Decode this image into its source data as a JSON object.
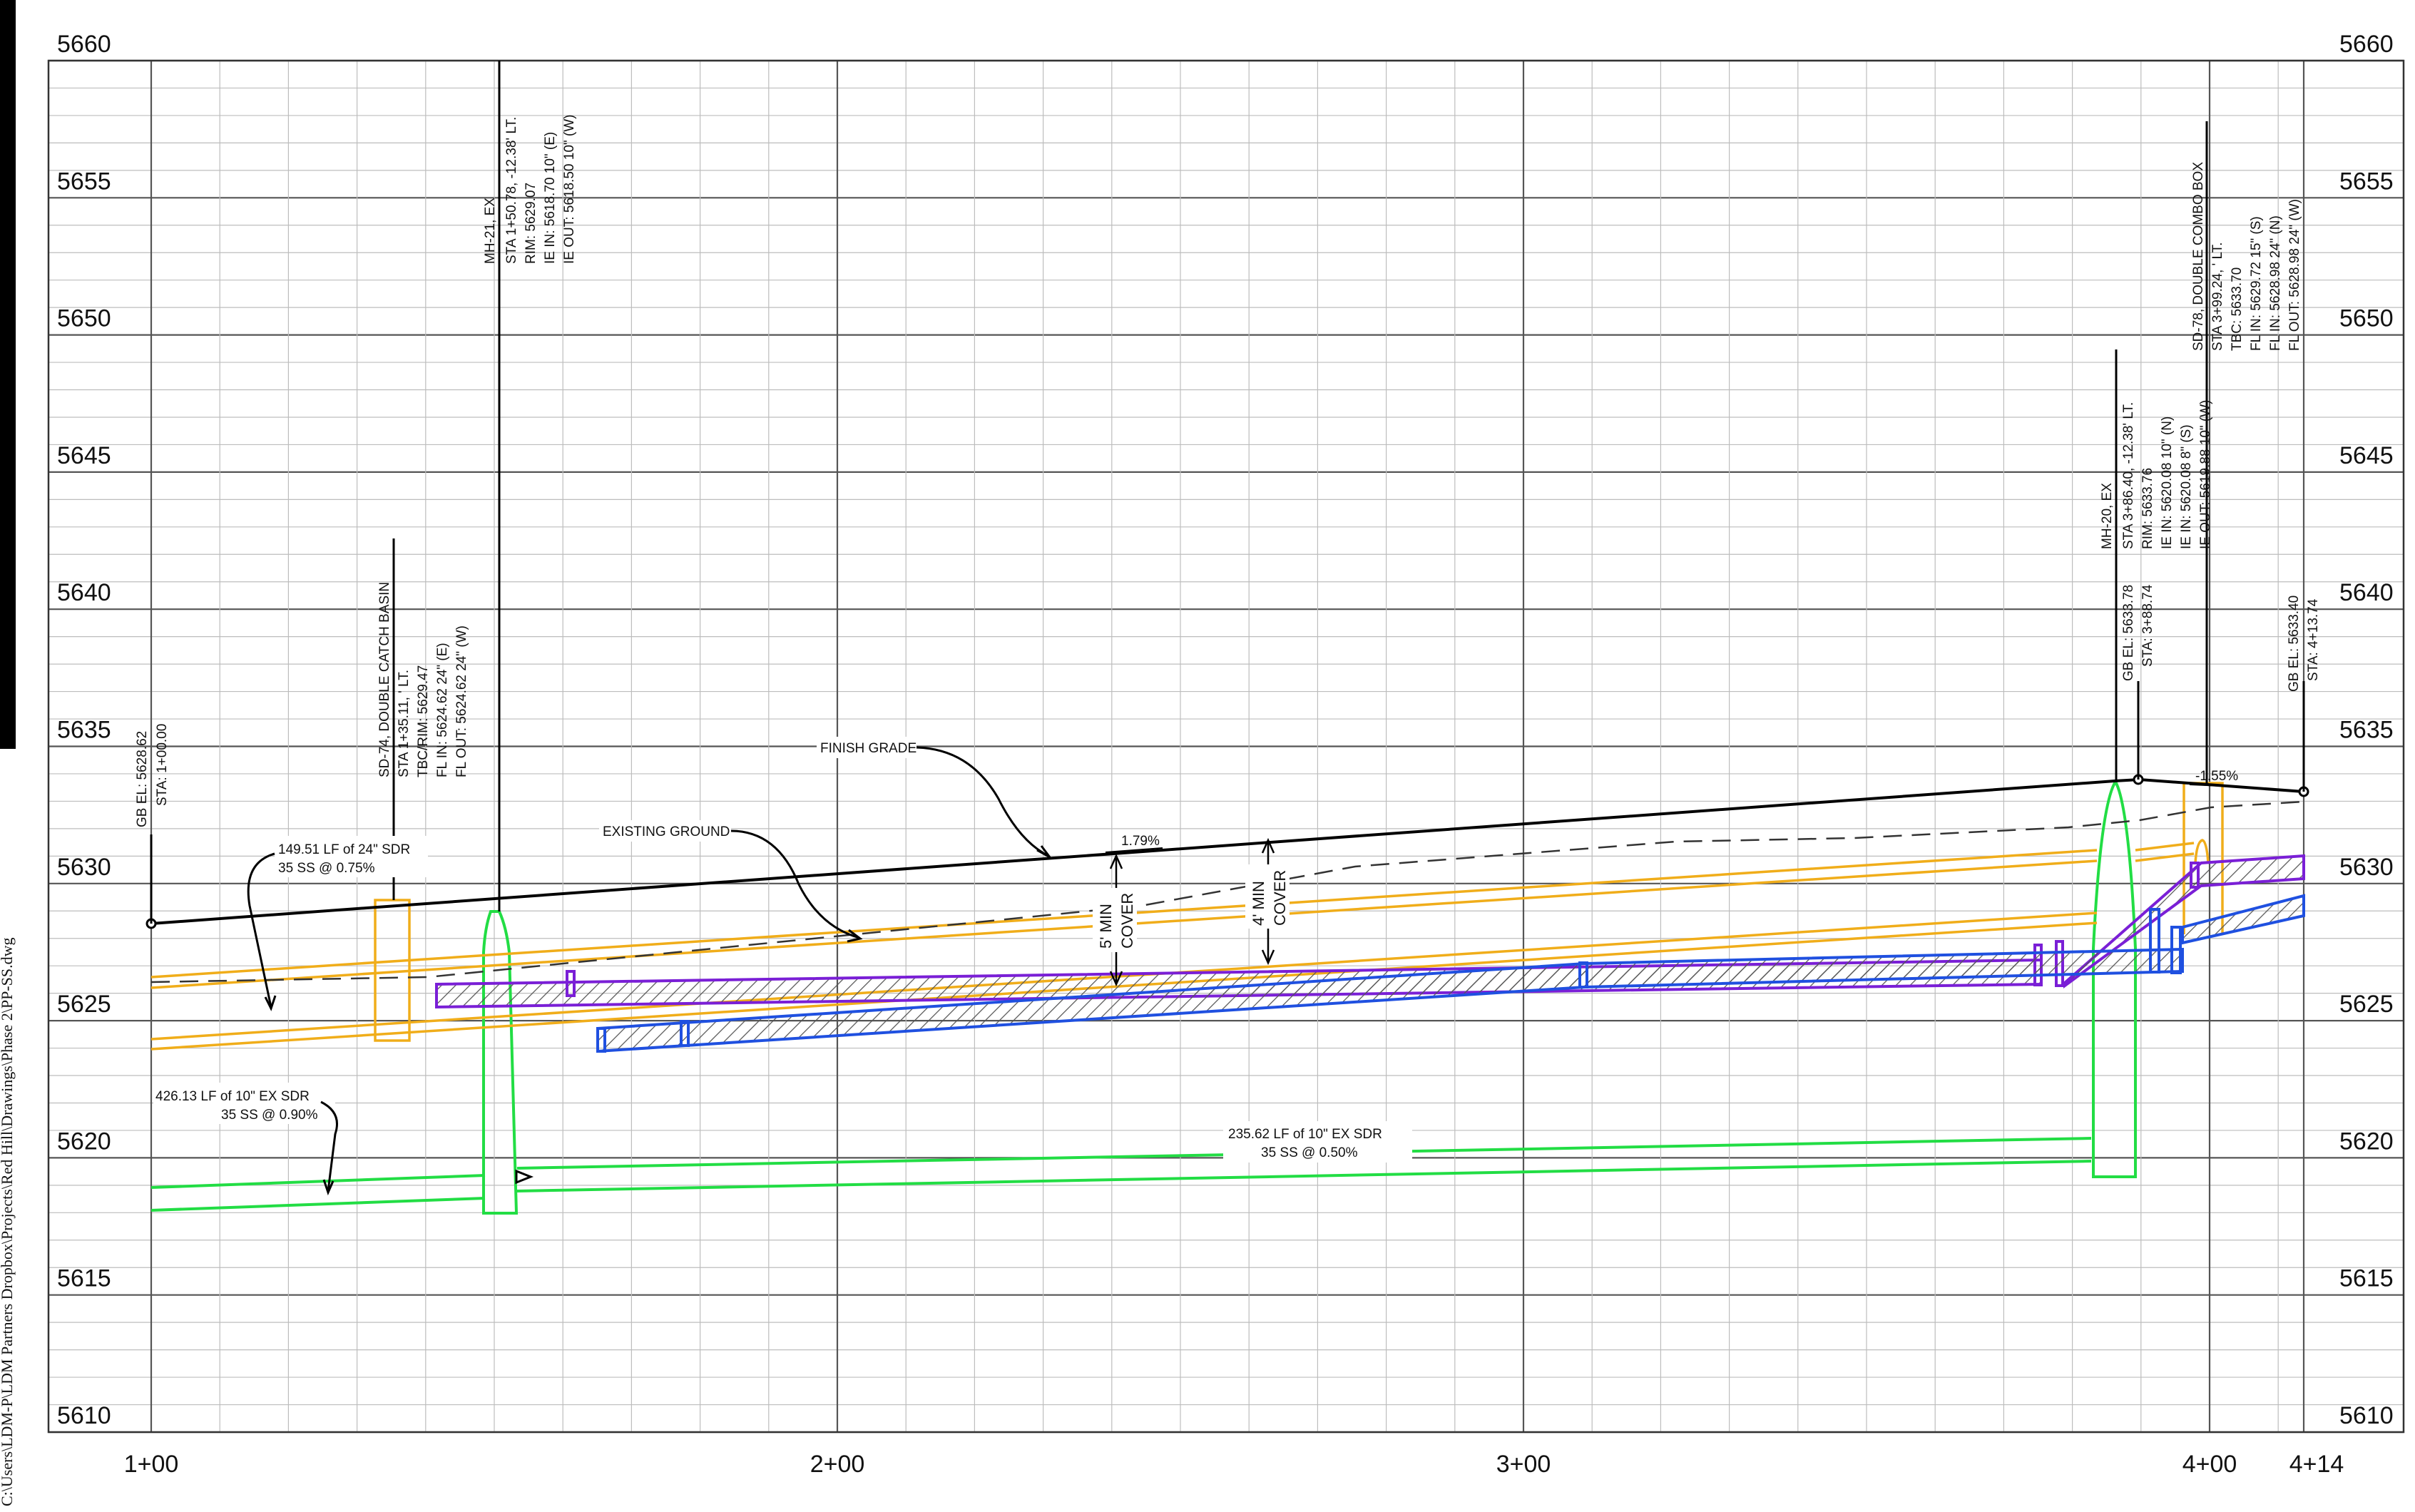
{
  "sidebar": {
    "path": "C:\\Users\\LDM-P\\LDM Partners Dropbox\\Projects\\Red Hill\\Drawings\\Phase 2\\PP-SS.dwg"
  },
  "y_axis_labels": [
    "5660",
    "5655",
    "5650",
    "5645",
    "5640",
    "5635",
    "5630",
    "5625",
    "5620",
    "5615",
    "5610"
  ],
  "x_axis_labels": [
    "1+00",
    "2+00",
    "3+00",
    "4+00",
    "4+14"
  ],
  "colors": {
    "finish_grade": "#000000",
    "existing_ground": "#444444",
    "storm_24in": "#f0ad1a",
    "sewer_existing": "#22dd44",
    "storm_purple": "#7a1fd6",
    "storm_blue": "#1f50e0",
    "grid_minor": "#b8b8b8",
    "grid_major": "#555555"
  },
  "annotations": {
    "start_point": [
      "GB EL: 5628.62",
      "STA: 1+00.00"
    ],
    "sd74": [
      "SD-74, DOUBLE CATCH BASIN",
      "STA 1+35.11, ' LT.",
      "TBC/RIM: 5629.47",
      "FL IN: 5624.62 24\" (E)",
      "FL OUT: 5624.62 24\" (W)"
    ],
    "mh21": [
      "MH-21, EX",
      "STA 1+50.78, -12.38' LT.",
      "RIM: 5629.07",
      "IE IN: 5618.70 10\" (E)",
      "IE OUT: 5618.50 10\" (W)"
    ],
    "mh20": [
      "MH-20, EX",
      "STA 3+86.40, -12.38' LT.",
      "RIM: 5633.76",
      "IE IN: 5620.08 10\" (N)",
      "IE IN: 5620.08 8\" (S)",
      "IE OUT: 5619.88 10\" (W)"
    ],
    "high_point": [
      "GB EL: 5633.78",
      "STA: 3+88.74"
    ],
    "sd78": [
      "SD-78, DOUBLE COMBO BOX",
      "STA 3+99.24, ' LT.",
      "TBC: 5633.70",
      "FL IN: 5629.72 15\" (S)",
      "FL IN: 5628.98 24\" (N)",
      "FL OUT: 5628.98 24\" (W)"
    ],
    "end_point": [
      "GB EL: 5633.40",
      "STA: 4+13.74"
    ],
    "pipe_24_lf": [
      "149.51 LF of 24\" SDR",
      "35 SS @ 0.75%"
    ],
    "pipe_10_ex_lf": [
      "426.13 LF of 10\" EX SDR",
      "35 SS @ 0.90%"
    ],
    "pipe_10_ex_lf2": [
      "235.62 LF of 10\" EX SDR",
      "35 SS @ 0.50%"
    ],
    "finish_grade": "FINISH GRADE",
    "existing_ground": "EXISTING GROUND",
    "slope_1": "1.79%",
    "slope_2": "-1.55%",
    "cover_5": [
      "5' MIN",
      "COVER"
    ],
    "cover_4": [
      "4' MIN",
      "COVER"
    ]
  }
}
